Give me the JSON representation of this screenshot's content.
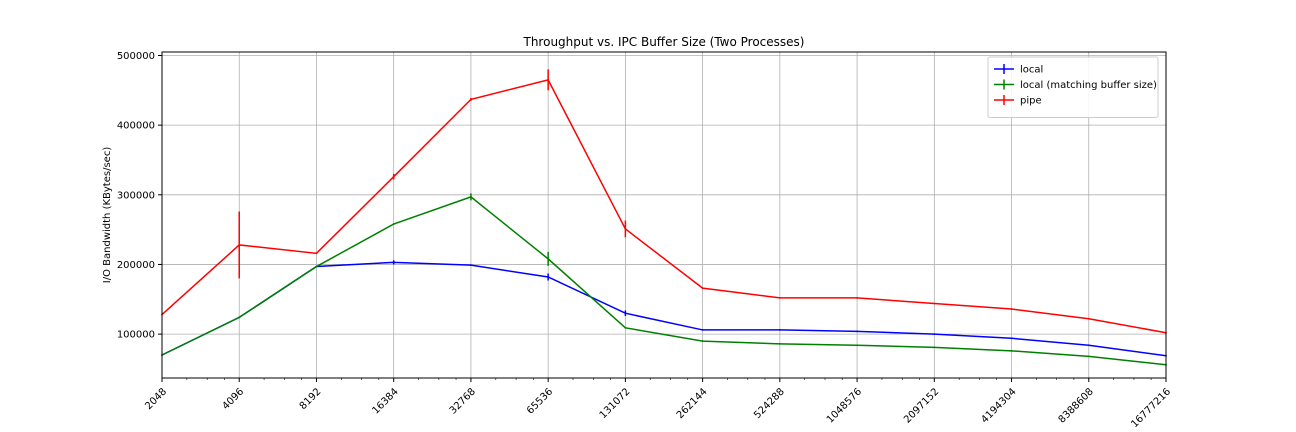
{
  "chart_data": {
    "type": "line",
    "title": "Throughput vs. IPC Buffer Size (Two Processes)",
    "xlabel": "",
    "ylabel": "I/O Bandwidth (KBytes/sec)",
    "x_scale": "log2",
    "x": [
      2048,
      4096,
      8192,
      16384,
      32768,
      65536,
      131072,
      262144,
      524288,
      1048576,
      2097152,
      4194304,
      8388608,
      16777216
    ],
    "xticklabels": [
      "2048",
      "4096",
      "8192",
      "16384",
      "32768",
      "65536",
      "131072",
      "262144",
      "524288",
      "1048576",
      "2097152",
      "4194304",
      "8388608",
      "16777216"
    ],
    "ylim": [
      37000,
      505000
    ],
    "yticks": [
      100000,
      200000,
      300000,
      400000,
      500000
    ],
    "yticklabels": [
      "100000",
      "200000",
      "300000",
      "400000",
      "500000"
    ],
    "grid": true,
    "legend_position": "top-right",
    "series": [
      {
        "name": "local",
        "color": "#0000ff",
        "values": [
          70000,
          124000,
          197000,
          203000,
          199000,
          182000,
          130000,
          106000,
          106000,
          104000,
          100000,
          94000,
          84000,
          69000
        ],
        "errors": [
          0,
          0,
          0,
          3000,
          0,
          5000,
          4000,
          0,
          0,
          0,
          0,
          0,
          0,
          0
        ]
      },
      {
        "name": "local (matching buffer size)",
        "color": "#008000",
        "values": [
          70000,
          124000,
          197000,
          258000,
          297000,
          208000,
          109000,
          90000,
          86000,
          84000,
          81000,
          76000,
          68000,
          56000
        ],
        "errors": [
          0,
          0,
          0,
          0,
          5000,
          10000,
          0,
          0,
          0,
          0,
          0,
          0,
          0,
          0
        ]
      },
      {
        "name": "pipe",
        "color": "#ff0000",
        "values": [
          128000,
          228000,
          216000,
          326000,
          437000,
          465000,
          251000,
          166000,
          152000,
          152000,
          144000,
          136000,
          122000,
          102000
        ],
        "errors": [
          0,
          48000,
          0,
          4000,
          2000,
          15000,
          12000,
          0,
          0,
          0,
          0,
          0,
          0,
          0
        ]
      }
    ]
  }
}
